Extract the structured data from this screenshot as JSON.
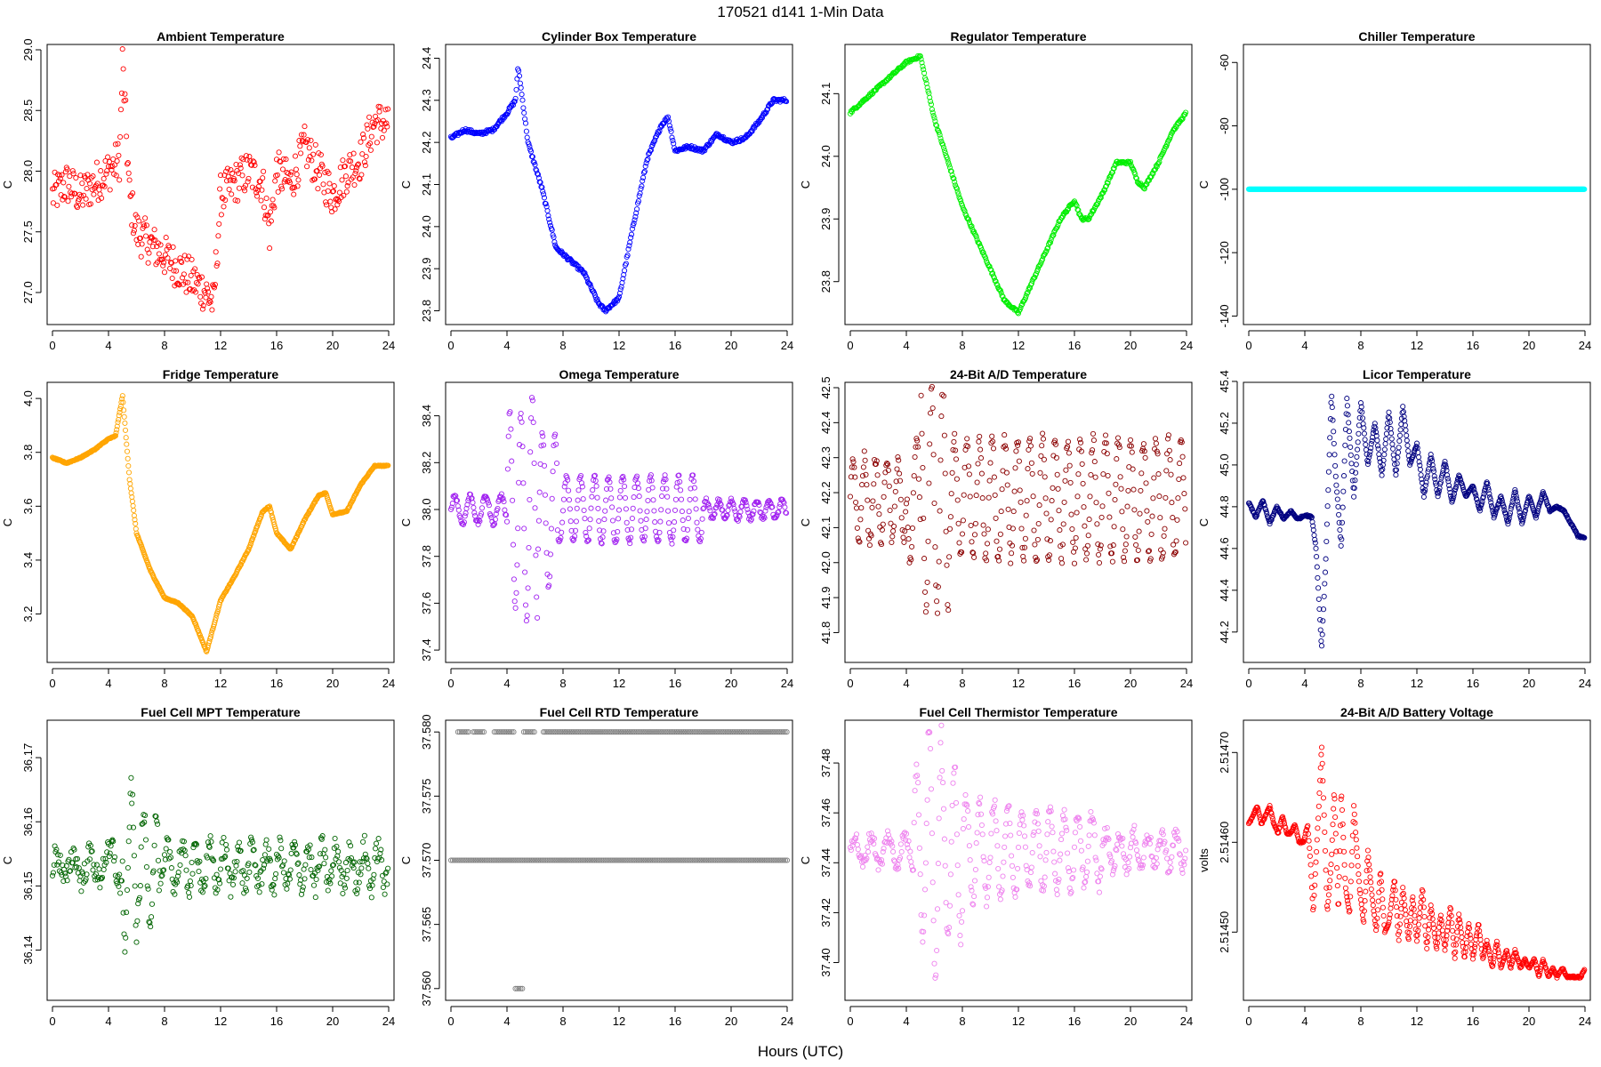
{
  "figure": {
    "title": "170521    d141    1-Min Data",
    "xlabel": "Hours (UTC)"
  },
  "chart_data": [
    {
      "type": "scatter",
      "title": "Ambient Temperature",
      "ylabel": "C",
      "color": "#ff0000",
      "xlim": [
        0,
        24
      ],
      "ylim": [
        26.78,
        29.0
      ],
      "xticks": [
        "0",
        "4",
        "8",
        "12",
        "16",
        "20",
        "24"
      ],
      "yticks": [
        "27.0",
        "27.5",
        "28.0",
        "28.5",
        "29.0"
      ],
      "ytick_values": [
        27.0,
        27.5,
        28.0,
        28.5,
        29.0
      ],
      "x": [
        0,
        1,
        2,
        3,
        4,
        4.8,
        5,
        5.5,
        6,
        7,
        8,
        9,
        10,
        11,
        11.5,
        12,
        13,
        14,
        15,
        15.5,
        16,
        17,
        18,
        19,
        20,
        21,
        22,
        23,
        24
      ],
      "y": [
        27.8,
        27.9,
        27.8,
        27.9,
        28.0,
        28.1,
        28.9,
        27.8,
        27.5,
        27.4,
        27.3,
        27.2,
        27.1,
        27.0,
        26.9,
        27.8,
        27.9,
        28.0,
        27.9,
        27.5,
        28.0,
        27.9,
        28.2,
        28.0,
        27.8,
        28.0,
        28.1,
        28.4,
        28.4
      ],
      "noise": 0.35,
      "density": 3
    },
    {
      "type": "scatter",
      "title": "Cylinder Box Temperature",
      "ylabel": "C",
      "color": "#0000ff",
      "xlim": [
        0,
        24
      ],
      "ylim": [
        23.78,
        24.42
      ],
      "xticks": [
        "0",
        "4",
        "8",
        "12",
        "16",
        "20",
        "24"
      ],
      "yticks": [
        "23.8",
        "23.9",
        "24.0",
        "24.1",
        "24.2",
        "24.3",
        "24.4"
      ],
      "ytick_values": [
        23.8,
        23.9,
        24.0,
        24.1,
        24.2,
        24.3,
        24.4
      ],
      "x": [
        0,
        1,
        2,
        3,
        4,
        4.6,
        4.8,
        5.5,
        6.5,
        7.5,
        8.5,
        9.5,
        10.5,
        11,
        12,
        13,
        14,
        15,
        15.5,
        16,
        17,
        18,
        19,
        20,
        21,
        22,
        23,
        24
      ],
      "y": [
        24.21,
        24.23,
        24.22,
        24.23,
        24.27,
        24.3,
        24.38,
        24.2,
        24.09,
        23.95,
        23.92,
        23.89,
        23.82,
        23.8,
        23.83,
        24.0,
        24.16,
        24.24,
        24.26,
        24.18,
        24.19,
        24.18,
        24.22,
        24.2,
        24.21,
        24.25,
        24.3,
        24.3
      ],
      "noise": 0.008,
      "density": 3
    },
    {
      "type": "scatter",
      "title": "Regulator Temperature",
      "ylabel": "C",
      "color": "#00ee00",
      "xlim": [
        0,
        24
      ],
      "ylim": [
        23.74,
        24.17
      ],
      "xticks": [
        "0",
        "4",
        "8",
        "12",
        "16",
        "20",
        "24"
      ],
      "yticks": [
        "23.8",
        "23.9",
        "24.0",
        "24.1"
      ],
      "ytick_values": [
        23.8,
        23.9,
        24.0,
        24.1
      ],
      "x": [
        0,
        1,
        2,
        3,
        4,
        5,
        6,
        8,
        10,
        11,
        12,
        13,
        14,
        15,
        16,
        16.5,
        17,
        18,
        19,
        20,
        20.5,
        21,
        22,
        23,
        24
      ],
      "y": [
        24.07,
        24.09,
        24.11,
        24.13,
        24.15,
        24.16,
        24.06,
        23.92,
        23.82,
        23.77,
        23.75,
        23.8,
        23.85,
        23.9,
        23.93,
        23.9,
        23.9,
        23.94,
        23.99,
        23.99,
        23.96,
        23.95,
        23.99,
        24.04,
        24.07
      ],
      "noise": 0.004,
      "density": 3
    },
    {
      "type": "scatter",
      "title": "Chiller Temperature",
      "ylabel": "C",
      "color": "#00ffff",
      "xlim": [
        0,
        24
      ],
      "ylim": [
        -141,
        -56
      ],
      "xticks": [
        "0",
        "4",
        "8",
        "12",
        "16",
        "20",
        "24"
      ],
      "yticks": [
        "-140",
        "-120",
        "-100",
        "-80",
        "-60"
      ],
      "ytick_values": [
        -140,
        -120,
        -100,
        -80,
        -60
      ],
      "x": [
        0,
        24
      ],
      "y": [
        -100,
        -100
      ],
      "noise": 0,
      "density": 4
    },
    {
      "type": "scatter",
      "title": "Fridge Temperature",
      "ylabel": "C",
      "color": "#ffa500",
      "xlim": [
        0,
        24
      ],
      "ylim": [
        3.04,
        4.04
      ],
      "xticks": [
        "0",
        "4",
        "8",
        "12",
        "16",
        "20",
        "24"
      ],
      "yticks": [
        "3.2",
        "3.4",
        "3.6",
        "3.8",
        "4.0"
      ],
      "ytick_values": [
        3.2,
        3.4,
        3.6,
        3.8,
        4.0
      ],
      "x": [
        0,
        1,
        2,
        3,
        4,
        4.5,
        5,
        5.5,
        6,
        7,
        8,
        9,
        10,
        11,
        12,
        13,
        14,
        15,
        15.5,
        16,
        17,
        18,
        19,
        19.5,
        20,
        21,
        22,
        23,
        24
      ],
      "y": [
        3.78,
        3.76,
        3.78,
        3.81,
        3.85,
        3.86,
        4.01,
        3.7,
        3.5,
        3.36,
        3.26,
        3.24,
        3.19,
        3.06,
        3.25,
        3.34,
        3.44,
        3.58,
        3.6,
        3.5,
        3.44,
        3.55,
        3.64,
        3.65,
        3.57,
        3.58,
        3.68,
        3.75,
        3.75
      ],
      "noise": 0.004,
      "density": 4
    },
    {
      "type": "scatter",
      "title": "Omega Temperature",
      "ylabel": "C",
      "color": "#a020f0",
      "xlim": [
        0,
        24
      ],
      "ylim": [
        37.37,
        38.52
      ],
      "xticks": [
        "0",
        "4",
        "8",
        "12",
        "16",
        "20",
        "24"
      ],
      "yticks": [
        "37.4",
        "37.6",
        "37.8",
        "38.0",
        "38.2",
        "38.4"
      ],
      "ytick_values": [
        37.4,
        37.6,
        37.8,
        38.0,
        38.2,
        38.4
      ],
      "base": 38.0,
      "osc": [
        [
          0,
          4,
          0.06,
          1.1
        ],
        [
          4,
          5.2,
          0.42,
          0.8
        ],
        [
          5.2,
          6.2,
          0.48,
          0.8
        ],
        [
          6.2,
          7.6,
          0.33,
          0.9
        ],
        [
          7.6,
          18,
          0.14,
          1.0
        ],
        [
          18,
          24,
          0.04,
          0.9
        ]
      ],
      "noise": 0.02,
      "density": 3
    },
    {
      "type": "scatter",
      "title": "24-Bit A/D Temperature",
      "ylabel": "C",
      "color": "#8b0000",
      "xlim": [
        0,
        24
      ],
      "ylim": [
        41.73,
        42.5
      ],
      "xticks": [
        "0",
        "4",
        "8",
        "12",
        "16",
        "20",
        "24"
      ],
      "yticks": [
        "41.8",
        "41.9",
        "42.0",
        "42.1",
        "42.2",
        "42.3",
        "42.4",
        "42.5"
      ],
      "ytick_values": [
        41.8,
        41.9,
        42.0,
        42.1,
        42.2,
        42.3,
        42.4,
        42.5
      ],
      "base": 42.18,
      "osc": [
        [
          0,
          4,
          0.12,
          0.8
        ],
        [
          4,
          5,
          0.18,
          0.9
        ],
        [
          5,
          7,
          0.32,
          0.8
        ],
        [
          7,
          24,
          0.17,
          0.9
        ]
      ],
      "noise": 0.04,
      "density": 3
    },
    {
      "type": "scatter",
      "title": "Licor Temperature",
      "ylabel": "C",
      "color": "#000080",
      "xlim": [
        0,
        24
      ],
      "ylim": [
        44.08,
        45.37
      ],
      "xticks": [
        "0",
        "4",
        "8",
        "12",
        "16",
        "20",
        "24"
      ],
      "yticks": [
        "44.2",
        "44.4",
        "44.6",
        "44.8",
        "45.0",
        "45.2",
        "45.4"
      ],
      "ytick_values": [
        44.2,
        44.4,
        44.6,
        44.8,
        45.0,
        45.2,
        45.4
      ],
      "x": [
        0,
        0.5,
        1,
        1.5,
        2,
        2.5,
        3,
        3.5,
        4,
        4.5,
        4.8,
        5.2,
        5.5,
        5.9,
        6.2,
        6.6,
        7,
        7.5,
        8,
        8.5,
        9,
        9.5,
        10,
        10.5,
        11,
        11.5,
        12,
        12.5,
        13,
        13.5,
        14,
        14.5,
        15,
        15.5,
        16,
        16.5,
        17,
        17.5,
        18,
        18.5,
        19,
        19.5,
        20,
        20.5,
        21,
        21.5,
        22,
        22.5,
        23,
        23.5,
        24
      ],
      "y": [
        44.82,
        44.75,
        44.83,
        44.72,
        44.8,
        44.74,
        44.78,
        44.74,
        44.76,
        44.75,
        44.6,
        44.12,
        44.55,
        45.35,
        44.95,
        44.6,
        45.32,
        44.85,
        45.3,
        45.0,
        45.2,
        44.95,
        45.25,
        44.95,
        45.28,
        45.0,
        45.1,
        44.85,
        45.05,
        44.85,
        45.02,
        44.82,
        44.95,
        44.85,
        44.9,
        44.78,
        44.92,
        44.75,
        44.85,
        44.72,
        44.88,
        44.72,
        44.85,
        44.75,
        44.87,
        44.78,
        44.8,
        44.78,
        44.72,
        44.66,
        44.65
      ],
      "noise": 0.008,
      "density": 4
    },
    {
      "type": "scatter",
      "title": "Fuel Cell MPT Temperature",
      "ylabel": "C",
      "color": "#006400",
      "xlim": [
        0,
        24
      ],
      "ylim": [
        36.133,
        36.175
      ],
      "xticks": [
        "0",
        "4",
        "8",
        "12",
        "16",
        "20",
        "24"
      ],
      "yticks": [
        "36.14",
        "36.15",
        "36.16",
        "36.17"
      ],
      "ytick_values": [
        36.14,
        36.15,
        36.16,
        36.17
      ],
      "base": 36.153,
      "osc": [
        [
          0,
          4,
          0.002,
          1.2
        ],
        [
          4,
          5,
          0.003,
          1.0
        ],
        [
          5,
          6,
          0.012,
          0.9
        ],
        [
          6,
          7.5,
          0.008,
          0.9
        ],
        [
          7.5,
          24,
          0.003,
          1.0
        ]
      ],
      "noise": 0.004,
      "density": 3
    },
    {
      "type": "scatter",
      "title": "Fuel Cell RTD Temperature",
      "ylabel": "C",
      "color": "#808080",
      "xlim": [
        0,
        24
      ],
      "ylim": [
        37.5595,
        37.5805
      ],
      "xticks": [
        "0",
        "4",
        "8",
        "12",
        "16",
        "20",
        "24"
      ],
      "yticks": [
        "37.560",
        "37.565",
        "37.570",
        "37.575",
        "37.580"
      ],
      "ytick_values": [
        37.56,
        37.565,
        37.57,
        37.575,
        37.58
      ],
      "levels": [
        {
          "y": 37.58,
          "ranges": [
            [
              0.5,
              1.3
            ],
            [
              1.6,
              2.4
            ],
            [
              3.1,
              4.5
            ],
            [
              5.2,
              6.0
            ],
            [
              6.6,
              24
            ]
          ]
        },
        {
          "y": 37.57,
          "ranges": [
            [
              0,
              24
            ]
          ]
        },
        {
          "y": 37.56,
          "ranges": [
            [
              4.6,
              5.2
            ]
          ]
        }
      ],
      "density": 2
    },
    {
      "type": "scatter",
      "title": "Fuel Cell Thermistor Temperature",
      "ylabel": "C",
      "color": "#ee82ee",
      "xlim": [
        0,
        24
      ],
      "ylim": [
        37.387,
        37.495
      ],
      "xticks": [
        "0",
        "4",
        "8",
        "12",
        "16",
        "20",
        "24"
      ],
      "yticks": [
        "37.40",
        "37.42",
        "37.44",
        "37.46",
        "37.48"
      ],
      "ytick_values": [
        37.4,
        37.42,
        37.44,
        37.46,
        37.48
      ],
      "base": 37.445,
      "osc": [
        [
          0,
          4.5,
          0.006,
          1.2
        ],
        [
          4.5,
          5.5,
          0.035,
          0.9
        ],
        [
          5.5,
          6.5,
          0.05,
          0.9
        ],
        [
          6.5,
          8,
          0.035,
          0.9
        ],
        [
          8,
          12,
          0.02,
          1.0
        ],
        [
          12,
          18,
          0.015,
          1.0
        ],
        [
          18,
          24,
          0.007,
          1.0
        ]
      ],
      "noise": 0.006,
      "density": 3
    },
    {
      "type": "scatter",
      "title": "24-Bit A/D Battery Voltage",
      "ylabel": "volts",
      "color": "#ff0000",
      "xlim": [
        0,
        24
      ],
      "ylim": [
        2.51443,
        2.51473
      ],
      "xticks": [
        "0",
        "4",
        "8",
        "12",
        "16",
        "20",
        "24"
      ],
      "yticks": [
        "2.51450",
        "2.51460",
        "2.51470"
      ],
      "ytick_values": [
        2.5145,
        2.5146,
        2.5147
      ],
      "x": [
        0,
        0.3,
        0.6,
        0.9,
        1.2,
        1.5,
        1.8,
        2.1,
        2.4,
        2.7,
        3.0,
        3.3,
        3.6,
        3.9,
        4.2,
        4.4,
        4.6,
        4.8,
        5.0,
        5.2,
        5.4,
        5.6,
        5.9,
        6.1,
        6.4,
        6.6,
        6.9,
        7.2,
        7.5,
        7.9,
        8.2,
        8.5,
        8.8,
        9.1,
        9.4,
        9.7,
        10.0,
        10.4,
        10.7,
        11.0,
        11.4,
        11.7,
        12.0,
        12.4,
        12.7,
        13.0,
        13.4,
        13.7,
        14.0,
        14.4,
        14.7,
        15.0,
        15.4,
        15.7,
        16.0,
        16.4,
        16.7,
        17.0,
        17.4,
        17.7,
        18.0,
        18.4,
        18.7,
        19.0,
        19.4,
        19.7,
        20.0,
        20.4,
        20.7,
        21.0,
        21.4,
        21.7,
        22.0,
        22.4,
        22.7,
        23.0,
        23.4,
        23.7,
        24.0
      ],
      "y": [
        2.51462,
        2.51463,
        2.51464,
        2.51462,
        2.51463,
        2.51464,
        2.51462,
        2.51461,
        2.51463,
        2.51461,
        2.51461,
        2.51462,
        2.5146,
        2.5146,
        2.51462,
        2.51458,
        2.51452,
        2.51458,
        2.51464,
        2.51471,
        2.51462,
        2.51452,
        2.51458,
        2.51466,
        2.51452,
        2.51466,
        2.51455,
        2.51452,
        2.51464,
        2.51455,
        2.51451,
        2.51459,
        2.51454,
        2.5145,
        2.51457,
        2.5145,
        2.51451,
        2.51456,
        2.51449,
        2.51455,
        2.51449,
        2.51454,
        2.51449,
        2.51455,
        2.51448,
        2.51453,
        2.51448,
        2.51452,
        2.51448,
        2.51453,
        2.51447,
        2.51452,
        2.51447,
        2.51451,
        2.51447,
        2.51451,
        2.51447,
        2.51449,
        2.51446,
        2.51449,
        2.51446,
        2.51448,
        2.51446,
        2.51448,
        2.51446,
        2.51447,
        2.51446,
        2.51447,
        2.51445,
        2.51447,
        2.51445,
        2.51446,
        2.51445,
        2.51446,
        2.51445,
        2.51445,
        2.51445,
        2.51445,
        2.51446
      ],
      "noise": 2e-06,
      "density": 4
    }
  ]
}
